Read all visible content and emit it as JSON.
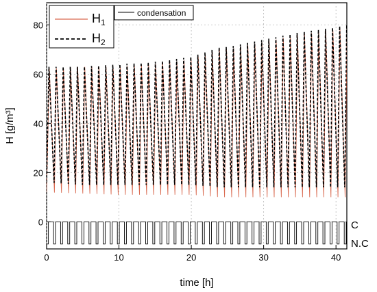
{
  "chart_data": {
    "type": "line",
    "xlabel": "time [h]",
    "ylabel": "H [g/m³]",
    "xlim": [
      0,
      41.5
    ],
    "ylim": [
      -11,
      89
    ],
    "x_ticks": [
      0,
      10,
      20,
      30,
      40
    ],
    "y_ticks": [
      0,
      20,
      40,
      60,
      80
    ],
    "grid": true,
    "legend_position": "top-left",
    "cycle_period_h": 0.98,
    "series": [
      {
        "name": "H1",
        "name_main": "H",
        "name_sub": "1",
        "color": "#d9694f",
        "style": "solid",
        "x": [
          0,
          5,
          10,
          15,
          20,
          24,
          25,
          30,
          35,
          40,
          41
        ],
        "peak": [
          62,
          63,
          63,
          64,
          66,
          70,
          70,
          73,
          76,
          78,
          79
        ],
        "trough": [
          12,
          11.5,
          11,
          11,
          11,
          10,
          10,
          10,
          10,
          10,
          10
        ]
      },
      {
        "name": "H2",
        "name_main": "H",
        "name_sub": "2",
        "color": "#000000",
        "style": "dashed",
        "x": [
          0,
          5,
          10,
          15,
          20,
          24,
          25,
          30,
          35,
          40,
          41
        ],
        "peak": [
          63,
          63,
          64,
          65,
          67,
          71,
          71,
          74,
          77,
          79,
          80
        ],
        "trough": [
          16,
          15,
          15,
          15,
          15,
          14,
          14,
          14,
          14,
          14,
          14
        ]
      },
      {
        "name": "condensation",
        "color": "#000000",
        "style": "step",
        "levels": {
          "C": 0,
          "N.C": -9
        },
        "duty_c": 0.72
      }
    ],
    "state_labels": [
      "C",
      "N.C"
    ]
  }
}
